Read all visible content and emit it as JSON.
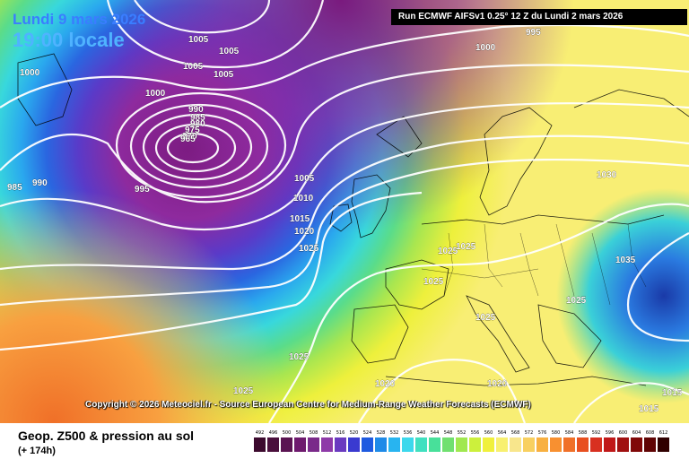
{
  "header": {
    "date": "Lundi 9 mars 2026",
    "time": "19:00 locale",
    "run": "Run ECMWF AIFSv1 0.25° 12 Z du Lundi 2 mars 2026"
  },
  "copyright": "Copyright © 2026 Meteociel.fr - Source European Centre for Medium-Range Weather Forecasts (ECMWF)",
  "footer": {
    "title": "Geop. Z500 & pression au sol",
    "subtitle": "(+ 174h)"
  },
  "isobar_labels": [
    {
      "text": "995"
    },
    {
      "text": "1000"
    },
    {
      "text": "1005"
    },
    {
      "text": "1005"
    },
    {
      "text": "1005"
    },
    {
      "text": "1005"
    },
    {
      "text": "1000"
    },
    {
      "text": "1000"
    },
    {
      "text": "990"
    },
    {
      "text": "985"
    },
    {
      "text": "980"
    },
    {
      "text": "975"
    },
    {
      "text": "970"
    },
    {
      "text": "965"
    },
    {
      "text": "985"
    },
    {
      "text": "990"
    },
    {
      "text": "995"
    },
    {
      "text": "1005"
    },
    {
      "text": "1010"
    },
    {
      "text": "1015"
    },
    {
      "text": "1020"
    },
    {
      "text": "1025"
    },
    {
      "text": "1030"
    },
    {
      "text": "1025"
    },
    {
      "text": "1025"
    },
    {
      "text": "1025"
    },
    {
      "text": "1025"
    },
    {
      "text": "1035"
    },
    {
      "text": "1025"
    },
    {
      "text": "1025"
    },
    {
      "text": "1025"
    },
    {
      "text": "1020"
    },
    {
      "text": "1020"
    },
    {
      "text": "1015"
    },
    {
      "text": "1015"
    }
  ],
  "legend": {
    "values": [
      "492",
      "496",
      "500",
      "504",
      "508",
      "512",
      "516",
      "520",
      "524",
      "528",
      "532",
      "536",
      "540",
      "544",
      "548",
      "552",
      "556",
      "560",
      "564",
      "568",
      "572",
      "576",
      "580",
      "584",
      "588",
      "592",
      "596",
      "600",
      "604",
      "608",
      "612"
    ],
    "colors": [
      "#3c0a2e",
      "#4a0f3c",
      "#5a1452",
      "#6e1a6e",
      "#7a2a8a",
      "#8e3aa8",
      "#6a3ac0",
      "#3a3ad0",
      "#1e5ae0",
      "#1e8ae8",
      "#28b4f0",
      "#3cd8ec",
      "#40e0c0",
      "#48e09a",
      "#70e070",
      "#a0e850",
      "#ccf03c",
      "#f0f03c",
      "#f8f070",
      "#f8e68c",
      "#f8d060",
      "#f8b040",
      "#f89030",
      "#f07028",
      "#e85020",
      "#d83020",
      "#c01818",
      "#a01010",
      "#800808",
      "#600404",
      "#300000"
    ]
  }
}
